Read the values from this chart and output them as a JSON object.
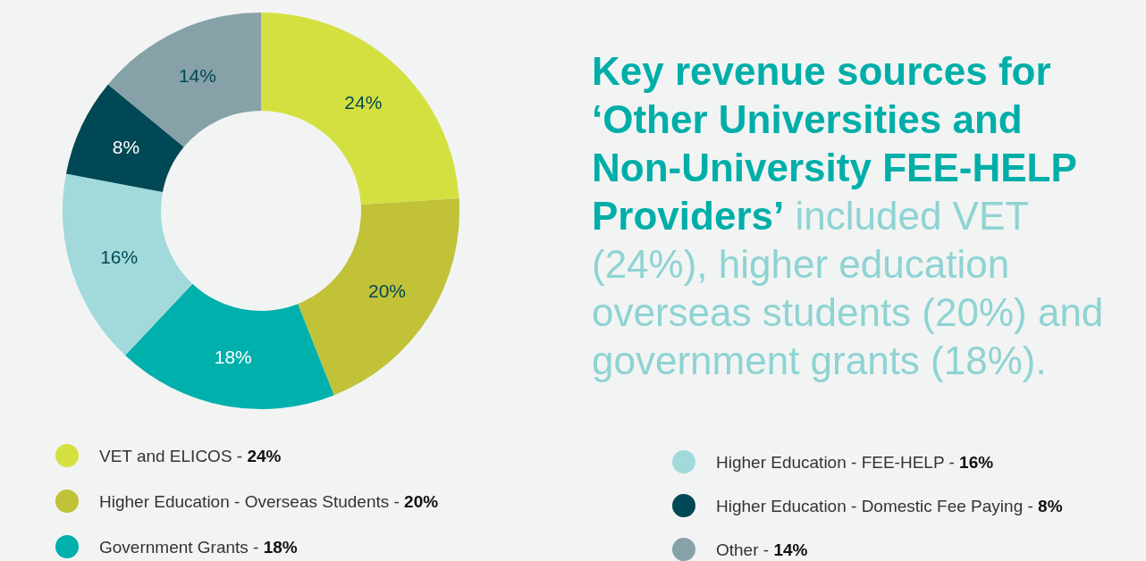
{
  "chart_data": {
    "type": "donut",
    "title": "Key revenue sources for ‘Other Universities and Non-University FEE-HELP Providers’",
    "subtitle": "included VET (24%), higher education overseas students (20%) and government grants (18%).",
    "categories": [
      "VET and ELICOS - 24%",
      "Higher Education - Overseas Students - 20%",
      "Government Grants  - 18%",
      "Higher Education - FEE-HELP  - 16%",
      "Higher Education - Domestic Fee Paying  - 8%",
      "Other  - 14%"
    ],
    "values": [
      24,
      20,
      18,
      16,
      8,
      14
    ],
    "value_labels": [
      "24%",
      "20%",
      "18%",
      "16%",
      "8%",
      "14%"
    ],
    "colors": [
      "#d4e040",
      "#c1c237",
      "#00b0ad",
      "#a2dadb",
      "#004855",
      "#86a1a8"
    ],
    "legend": "bottom"
  }
}
